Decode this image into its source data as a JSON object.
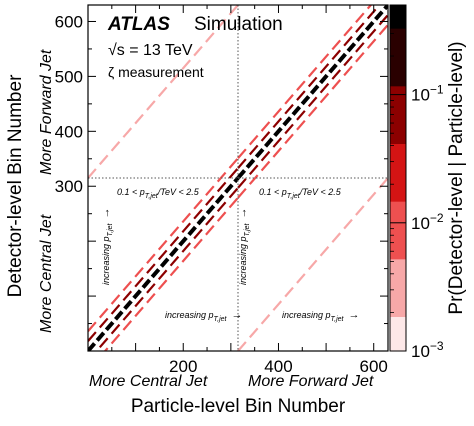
{
  "chart_data": {
    "type": "heatmap",
    "title": "ATLAS Simulation",
    "title_parts": {
      "experiment": "ATLAS",
      "label": "Simulation"
    },
    "energy_label": "√s = 13 TeV",
    "measurement_label": "ζ measurement",
    "xlabel": "Particle-level Bin Number",
    "ylabel": "Detector-level Bin Number",
    "colorbar_label": "Pr(Detector-level | Particle-level)",
    "colorbar_scale": "log",
    "colorbar_range": [
      0.001,
      0.5
    ],
    "colorbar_ticks": [
      {
        "value": 0.001,
        "base": "10",
        "exp": "−3"
      },
      {
        "value": 0.01,
        "base": "10",
        "exp": "−2"
      },
      {
        "value": 0.1,
        "base": "10",
        "exp": "−1"
      }
    ],
    "colormap": [
      "#fde8e8",
      "#f7a8a8",
      "#ee5050",
      "#d41414",
      "#8c0000",
      "#2a0000",
      "#000000"
    ],
    "xlim": [
      0,
      630
    ],
    "ylim": [
      0,
      630
    ],
    "xticks": [
      200,
      400,
      600
    ],
    "yticks": [
      300,
      400,
      500,
      600
    ],
    "region_boundary": 315,
    "region_labels": {
      "x_low": "More Central Jet",
      "x_high": "More Forward Jet",
      "y_low": "More Central Jet",
      "y_high": "More Forward Jet"
    },
    "annotations": {
      "pt_range": "0.1 < p",
      "pt_range_sub": "T,jet",
      "pt_range_rest": "/TeV < 2.5",
      "increasing": "increasing p",
      "increasing_sub": "T,jet",
      "arrow_right": "→",
      "arrow_up": "→"
    },
    "diagonal_bands": [
      {
        "region": "central",
        "x_range": [
          0,
          315
        ],
        "offset": 0,
        "probability": 0.45
      },
      {
        "region": "forward",
        "x_range": [
          315,
          630
        ],
        "offset": 0,
        "probability": 0.45
      },
      {
        "region": "central",
        "x_range": [
          0,
          315
        ],
        "offset": 18,
        "probability": 0.05
      },
      {
        "region": "central",
        "x_range": [
          0,
          315
        ],
        "offset": -18,
        "probability": 0.05
      },
      {
        "region": "forward",
        "x_range": [
          315,
          630
        ],
        "offset": 18,
        "probability": 0.05
      },
      {
        "region": "forward",
        "x_range": [
          315,
          630
        ],
        "offset": -18,
        "probability": 0.05
      },
      {
        "region": "central",
        "x_range": [
          0,
          315
        ],
        "offset": 36,
        "probability": 0.008
      },
      {
        "region": "central",
        "x_range": [
          0,
          315
        ],
        "offset": -36,
        "probability": 0.008
      },
      {
        "region": "forward",
        "x_range": [
          315,
          630
        ],
        "offset": 36,
        "probability": 0.008
      },
      {
        "region": "forward",
        "x_range": [
          315,
          630
        ],
        "offset": -36,
        "probability": 0.008
      },
      {
        "region": "off-diagonal",
        "x_range": [
          0,
          315
        ],
        "offset": 315,
        "probability": 0.003
      },
      {
        "region": "off-diagonal",
        "x_range": [
          315,
          630
        ],
        "offset": -315,
        "probability": 0.003
      }
    ],
    "grid": false
  }
}
